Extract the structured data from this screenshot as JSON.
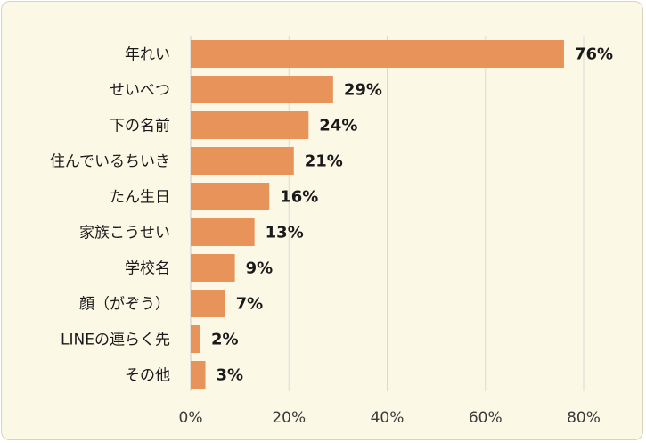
{
  "chart_data": {
    "type": "bar",
    "orientation": "horizontal",
    "categories": [
      "年れい",
      "せいべつ",
      "下の名前",
      "住んでいるちいき",
      "たん生日",
      "家族こうせい",
      "学校名",
      "顔（がぞう）",
      "LINEの連らく先",
      "その他"
    ],
    "values": [
      76,
      29,
      24,
      21,
      16,
      13,
      9,
      7,
      2,
      3
    ],
    "value_labels": [
      "76%",
      "29%",
      "24%",
      "21%",
      "16%",
      "13%",
      "9%",
      "7%",
      "2%",
      "3%"
    ],
    "x_ticks": [
      "0%",
      "20%",
      "40%",
      "60%",
      "80%"
    ],
    "xlim": [
      0,
      80
    ],
    "grid": "vertical",
    "bar_color": "#e8935a",
    "background_color": "#fcf8e6",
    "title": "",
    "xlabel": "",
    "ylabel": ""
  }
}
